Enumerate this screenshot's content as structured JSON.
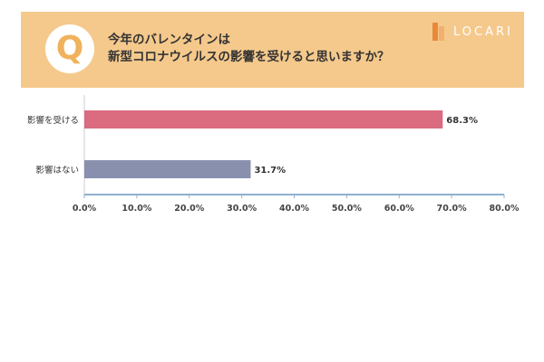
{
  "question": {
    "badge": "Q",
    "line1": "今年のバレンタインは",
    "line2": "新型コロナウイルスの影響を受けると思いますか？"
  },
  "brand": {
    "name": "LOCARI"
  },
  "colors": {
    "banner": "#f5c98c",
    "bar_affected": "#db6b7f",
    "bar_not_affected": "#8890ad",
    "axis": "#8fb0cf"
  },
  "chart_data": {
    "type": "bar",
    "orientation": "horizontal",
    "categories": [
      "影響を受ける",
      "影響はない"
    ],
    "values": [
      68.3,
      31.7
    ],
    "value_labels": [
      "68.3%",
      "31.7%"
    ],
    "xlim": [
      0,
      80
    ],
    "x_ticks": [
      "0.0%",
      "10.0%",
      "20.0%",
      "30.0%",
      "40.0%",
      "50.0%",
      "60.0%",
      "70.0%",
      "80.0%"
    ],
    "grid": false,
    "title": "",
    "xlabel": "",
    "ylabel": ""
  }
}
